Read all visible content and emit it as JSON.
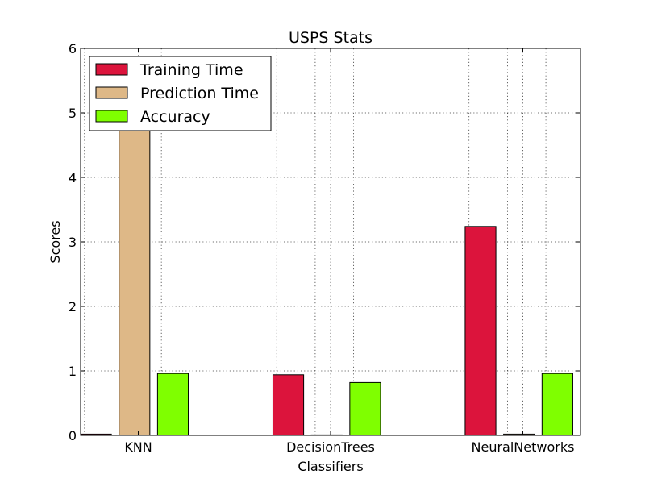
{
  "chart_data": {
    "type": "bar",
    "title": "USPS Stats",
    "xlabel": "Classifiers",
    "ylabel": "Scores",
    "categories": [
      "KNN",
      "DecisionTrees",
      "NeuralNetworks"
    ],
    "ylim": [
      0,
      6
    ],
    "yticks": [
      0,
      1,
      2,
      3,
      4,
      5,
      6
    ],
    "grid": true,
    "legend_position": "top-left",
    "series": [
      {
        "name": "Training Time",
        "color": "#dc143c",
        "values": [
          0.02,
          0.94,
          3.24
        ]
      },
      {
        "name": "Prediction Time",
        "color": "#deb887",
        "values": [
          4.9,
          0.0,
          0.02
        ]
      },
      {
        "name": "Accuracy",
        "color": "#7fff00",
        "values": [
          0.96,
          0.82,
          0.96
        ]
      }
    ]
  }
}
